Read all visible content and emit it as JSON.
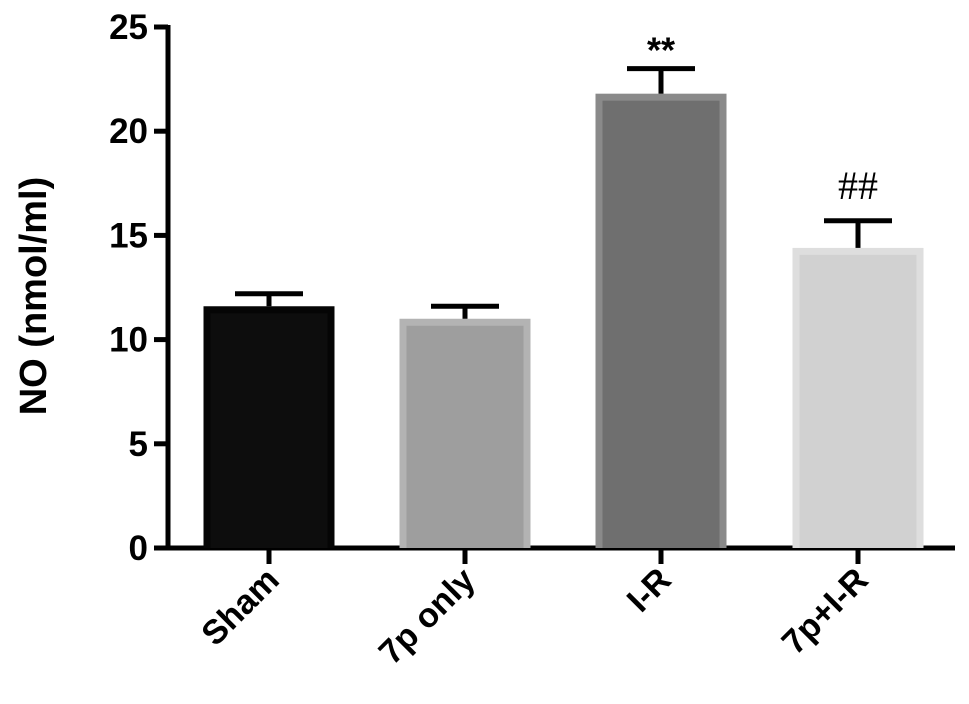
{
  "chart_data": {
    "type": "bar",
    "title": "",
    "xlabel": "",
    "ylabel": "NO (nmol/ml)",
    "ylim": [
      0,
      25
    ],
    "yticks": [
      "0",
      "5",
      "10",
      "15",
      "20",
      "25"
    ],
    "grid": false,
    "legend": "none",
    "categories": [
      "Sham",
      "7p only",
      "I-R",
      "7p+I-R"
    ],
    "values": [
      11.6,
      11.0,
      21.8,
      14.4
    ],
    "errors": [
      0.6,
      0.6,
      1.2,
      1.3
    ],
    "annotations": [
      "",
      "",
      "**",
      "##"
    ],
    "bar_colors": [
      "#0d0d0d",
      "#9e9e9e",
      "#6f6f6f",
      "#d1d1d1"
    ],
    "bar_outline_colors": [
      "#050505",
      "#b3b3b3",
      "#8a8a8a",
      "#dedede"
    ]
  }
}
